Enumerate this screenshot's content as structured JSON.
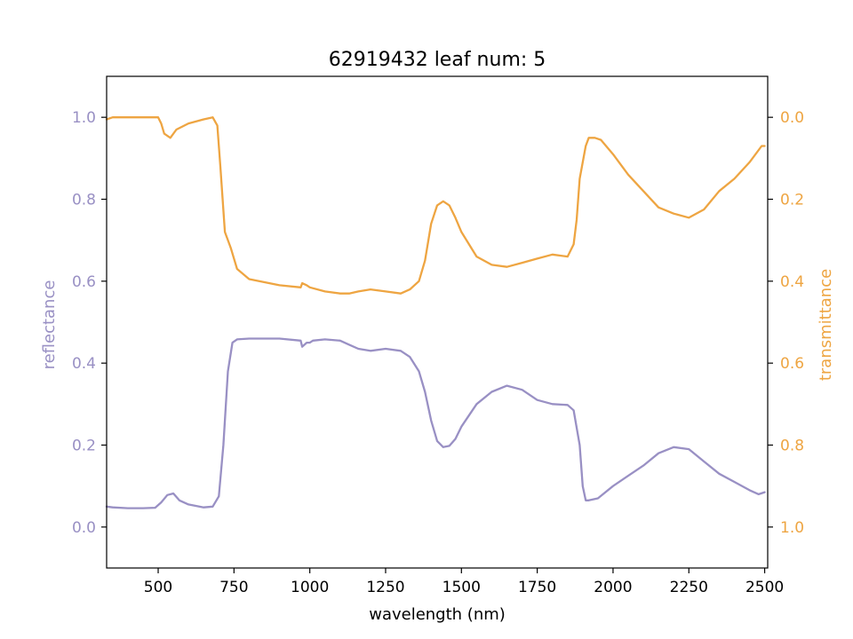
{
  "chart_data": {
    "type": "line",
    "title": "62919432 leaf num: 5",
    "xlabel": "wavelength (nm)",
    "x_ticks": [
      500,
      750,
      1000,
      1250,
      1500,
      1750,
      2000,
      2250,
      2500
    ],
    "xlim": [
      330,
      2510
    ],
    "left_axis": {
      "label": "reflectance",
      "color": "#9990c4",
      "ylim": [
        -0.1,
        1.1
      ],
      "ticks": [
        0.0,
        0.2,
        0.4,
        0.6,
        0.8,
        1.0
      ],
      "tick_labels": [
        "0.0",
        "0.2",
        "0.4",
        "0.6",
        "0.8",
        "1.0"
      ]
    },
    "right_axis": {
      "label": "transmittance",
      "color": "#eea542",
      "ylim": [
        1.1,
        -0.1
      ],
      "inverted": true,
      "ticks": [
        0.0,
        0.2,
        0.4,
        0.6,
        0.8,
        1.0
      ],
      "tick_labels": [
        "0.0",
        "0.2",
        "0.4",
        "0.6",
        "0.8",
        "1.0"
      ]
    },
    "series": [
      {
        "axis": "left",
        "color": "#9990c4",
        "x": [
          330,
          350,
          400,
          450,
          490,
          510,
          530,
          550,
          570,
          600,
          650,
          680,
          700,
          715,
          730,
          745,
          760,
          800,
          900,
          970,
          975,
          990,
          1000,
          1010,
          1050,
          1100,
          1130,
          1160,
          1200,
          1250,
          1300,
          1330,
          1360,
          1380,
          1400,
          1420,
          1440,
          1460,
          1480,
          1500,
          1550,
          1600,
          1650,
          1700,
          1750,
          1800,
          1850,
          1870,
          1890,
          1900,
          1910,
          1920,
          1950,
          2000,
          2050,
          2100,
          2150,
          2200,
          2250,
          2300,
          2350,
          2400,
          2450,
          2480,
          2500
        ],
        "y": [
          0.05,
          0.048,
          0.046,
          0.046,
          0.047,
          0.06,
          0.078,
          0.082,
          0.065,
          0.055,
          0.048,
          0.05,
          0.075,
          0.2,
          0.38,
          0.45,
          0.458,
          0.46,
          0.46,
          0.455,
          0.44,
          0.45,
          0.45,
          0.455,
          0.458,
          0.455,
          0.445,
          0.435,
          0.43,
          0.435,
          0.43,
          0.415,
          0.38,
          0.33,
          0.26,
          0.21,
          0.195,
          0.198,
          0.215,
          0.245,
          0.3,
          0.33,
          0.345,
          0.335,
          0.31,
          0.3,
          0.298,
          0.285,
          0.2,
          0.1,
          0.065,
          0.065,
          0.07,
          0.1,
          0.125,
          0.15,
          0.18,
          0.195,
          0.19,
          0.16,
          0.13,
          0.11,
          0.09,
          0.08,
          0.085
        ]
      },
      {
        "axis": "right",
        "color": "#eea542",
        "x": [
          330,
          350,
          400,
          450,
          500,
          510,
          520,
          540,
          560,
          600,
          650,
          680,
          695,
          705,
          720,
          740,
          760,
          800,
          900,
          970,
          975,
          990,
          1000,
          1050,
          1100,
          1130,
          1160,
          1200,
          1250,
          1300,
          1330,
          1360,
          1380,
          1400,
          1420,
          1440,
          1460,
          1480,
          1500,
          1550,
          1600,
          1650,
          1700,
          1750,
          1800,
          1850,
          1870,
          1880,
          1890,
          1900,
          1910,
          1920,
          1940,
          1960,
          2000,
          2050,
          2100,
          2150,
          2200,
          2250,
          2300,
          2350,
          2400,
          2450,
          2490,
          2500
        ],
        "y": [
          0.005,
          0.0,
          0.0,
          0.0,
          0.0,
          0.015,
          0.04,
          0.05,
          0.03,
          0.015,
          0.005,
          0.0,
          0.02,
          0.12,
          0.28,
          0.32,
          0.37,
          0.395,
          0.41,
          0.415,
          0.405,
          0.41,
          0.415,
          0.425,
          0.43,
          0.43,
          0.425,
          0.42,
          0.425,
          0.43,
          0.42,
          0.4,
          0.35,
          0.26,
          0.215,
          0.205,
          0.215,
          0.245,
          0.28,
          0.34,
          0.36,
          0.365,
          0.355,
          0.345,
          0.335,
          0.34,
          0.31,
          0.25,
          0.15,
          0.11,
          0.07,
          0.05,
          0.05,
          0.055,
          0.09,
          0.14,
          0.18,
          0.22,
          0.235,
          0.245,
          0.225,
          0.18,
          0.15,
          0.11,
          0.07,
          0.07
        ]
      }
    ]
  }
}
